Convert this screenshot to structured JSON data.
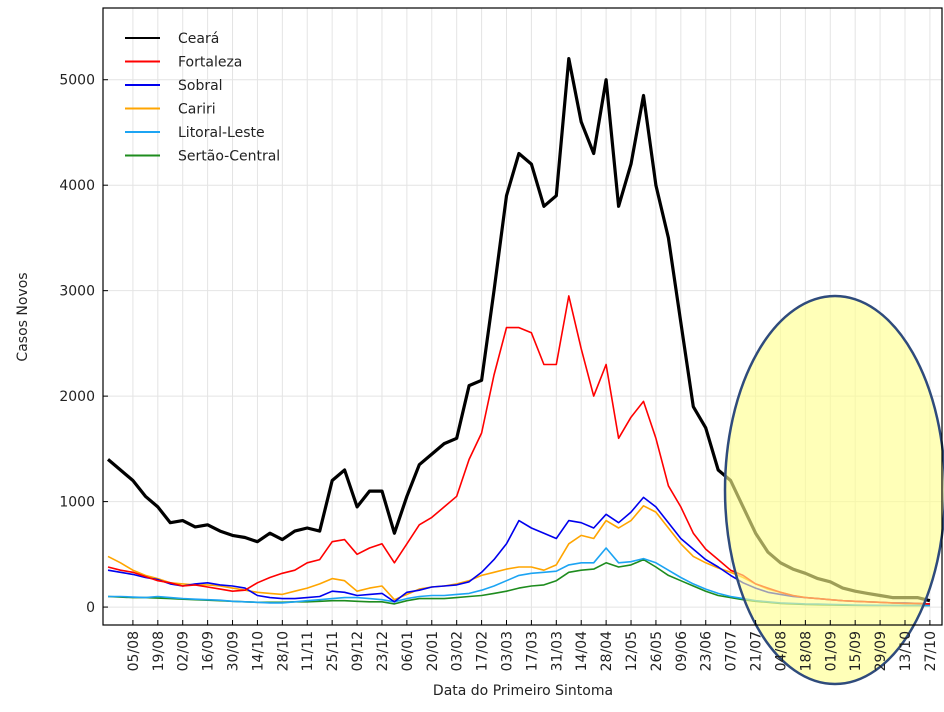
{
  "chart_data": {
    "type": "line",
    "x_label": "Data do Primeiro Sintoma",
    "y_label": "Casos Novos",
    "categories": [
      null,
      null,
      "05/08",
      null,
      "19/08",
      null,
      "02/09",
      null,
      "16/09",
      null,
      "30/09",
      null,
      "14/10",
      null,
      "28/10",
      null,
      "11/11",
      null,
      "25/11",
      null,
      "09/12",
      null,
      "23/12",
      null,
      "06/01",
      null,
      "20/01",
      null,
      "03/02",
      null,
      "17/02",
      null,
      "03/03",
      null,
      "17/03",
      null,
      "31/03",
      null,
      "14/04",
      null,
      "28/04",
      null,
      "12/05",
      null,
      "26/05",
      null,
      "09/06",
      null,
      "23/06",
      null,
      "07/07",
      null,
      "21/07",
      null,
      "04/08",
      null,
      "18/08",
      null,
      "01/09",
      null,
      "15/09",
      null,
      "29/09",
      null,
      "13/10",
      null,
      "27/10",
      null
    ],
    "ylim": [
      -170,
      5680
    ],
    "yticks": [
      0,
      1000,
      2000,
      3000,
      4000,
      5000
    ],
    "grid": true,
    "legend": "upper left",
    "series": [
      {
        "name": "Ceará",
        "color": "#000000",
        "values": [
          1400,
          1300,
          1200,
          1050,
          950,
          800,
          820,
          760,
          780,
          720,
          680,
          660,
          620,
          700,
          640,
          720,
          750,
          720,
          1200,
          1300,
          950,
          1100,
          1100,
          700,
          1050,
          1350,
          1450,
          1550,
          1600,
          2100,
          2150,
          3000,
          3900,
          4300,
          4200,
          3800,
          3900,
          5200,
          4600,
          4300,
          5000,
          3800,
          4200,
          4850,
          4000,
          3500,
          2700,
          1900,
          1700,
          1300,
          1200,
          950,
          700,
          520,
          420,
          360,
          320,
          270,
          240,
          180,
          150,
          130,
          110,
          90,
          90,
          90,
          60,
          null
        ]
      },
      {
        "name": "Fortaleza",
        "color": "#ff0000",
        "values": [
          380,
          350,
          330,
          290,
          250,
          230,
          200,
          210,
          190,
          170,
          150,
          160,
          230,
          280,
          320,
          350,
          420,
          450,
          620,
          640,
          500,
          560,
          600,
          420,
          600,
          780,
          850,
          950,
          1050,
          1400,
          1650,
          2200,
          2650,
          2650,
          2600,
          2300,
          2300,
          2950,
          2450,
          2000,
          2300,
          1600,
          1800,
          1950,
          1600,
          1150,
          950,
          700,
          550,
          450,
          350,
          300,
          220,
          180,
          140,
          110,
          90,
          80,
          70,
          60,
          55,
          50,
          45,
          40,
          35,
          35,
          30,
          null
        ]
      },
      {
        "name": "Sobral",
        "color": "#0000ee",
        "values": [
          350,
          330,
          310,
          280,
          260,
          220,
          200,
          220,
          230,
          210,
          200,
          180,
          110,
          90,
          80,
          80,
          90,
          100,
          150,
          140,
          110,
          120,
          130,
          50,
          140,
          160,
          190,
          200,
          210,
          240,
          330,
          450,
          600,
          820,
          750,
          700,
          650,
          820,
          800,
          750,
          880,
          800,
          900,
          1040,
          950,
          800,
          650,
          550,
          450,
          380,
          300,
          230,
          180,
          140,
          120,
          100,
          90,
          80,
          70,
          60,
          55,
          50,
          45,
          40,
          40,
          35,
          30,
          null
        ]
      },
      {
        "name": "Cariri",
        "color": "#ffa500",
        "values": [
          480,
          420,
          350,
          300,
          270,
          230,
          220,
          210,
          210,
          200,
          180,
          160,
          140,
          130,
          120,
          150,
          180,
          220,
          270,
          250,
          150,
          180,
          200,
          70,
          120,
          170,
          190,
          200,
          220,
          250,
          300,
          330,
          360,
          380,
          380,
          350,
          400,
          600,
          680,
          650,
          820,
          750,
          820,
          960,
          900,
          750,
          600,
          480,
          420,
          370,
          330,
          280,
          220,
          170,
          140,
          110,
          90,
          80,
          70,
          60,
          55,
          50,
          45,
          40,
          40,
          35,
          30,
          null
        ]
      },
      {
        "name": "Litoral-Leste",
        "color": "#1ca4f3",
        "values": [
          100,
          100,
          95,
          90,
          100,
          90,
          80,
          75,
          70,
          65,
          55,
          50,
          45,
          40,
          40,
          50,
          60,
          70,
          80,
          90,
          90,
          80,
          70,
          50,
          80,
          100,
          110,
          110,
          120,
          130,
          160,
          200,
          250,
          300,
          320,
          330,
          340,
          400,
          420,
          420,
          560,
          420,
          430,
          460,
          420,
          350,
          280,
          220,
          170,
          130,
          100,
          80,
          60,
          50,
          40,
          35,
          30,
          28,
          25,
          22,
          20,
          18,
          17,
          16,
          15,
          15,
          15,
          null
        ]
      },
      {
        "name": "Sertão-Central",
        "color": "#1e8c1e",
        "values": [
          100,
          95,
          90,
          90,
          85,
          80,
          75,
          70,
          65,
          60,
          55,
          50,
          45,
          45,
          45,
          50,
          50,
          55,
          60,
          60,
          55,
          50,
          50,
          30,
          60,
          80,
          80,
          80,
          90,
          100,
          110,
          130,
          150,
          180,
          200,
          210,
          250,
          330,
          350,
          360,
          420,
          380,
          400,
          450,
          380,
          300,
          250,
          200,
          150,
          110,
          90,
          70,
          55,
          45,
          35,
          30,
          25,
          22,
          20,
          18,
          17,
          16,
          15,
          15,
          14,
          14,
          14,
          null
        ]
      }
    ]
  }
}
